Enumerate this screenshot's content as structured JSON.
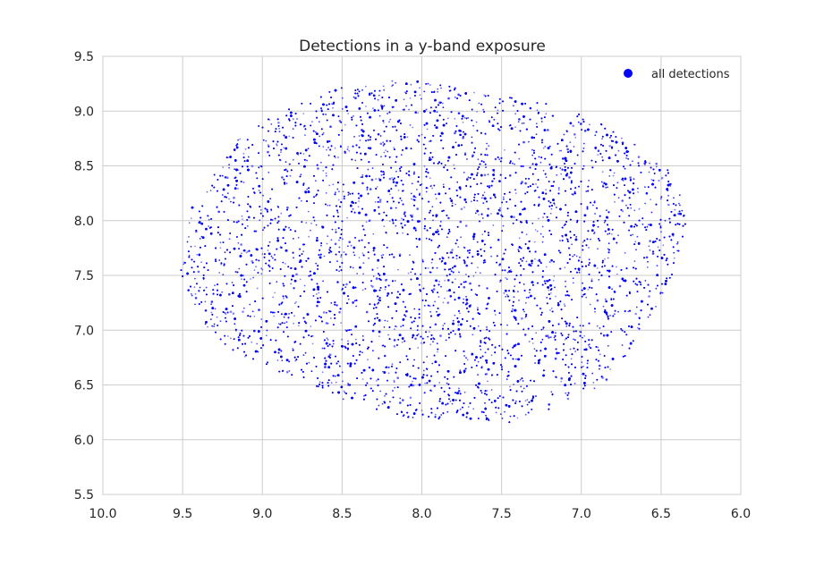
{
  "chart_data": {
    "type": "scatter",
    "title": "Detections in a y-band exposure",
    "xlabel": "",
    "ylabel": "",
    "xlim": [
      10.0,
      6.0
    ],
    "ylim": [
      5.5,
      9.5
    ],
    "x_axis_inverted": true,
    "grid": true,
    "legend_position": "top-right",
    "x_ticks": [
      "10.0",
      "9.5",
      "9.0",
      "8.5",
      "8.0",
      "7.5",
      "7.0",
      "6.5",
      "6.0"
    ],
    "y_ticks": [
      "5.5",
      "6.0",
      "6.5",
      "7.0",
      "7.5",
      "8.0",
      "8.5",
      "9.0",
      "9.5"
    ],
    "series": [
      {
        "name": "all detections",
        "color": "#0000ff",
        "marker": "dot",
        "footprint_vertices": [
          [
            8.55,
            9.2
          ],
          [
            8.15,
            9.3
          ],
          [
            7.3,
            9.1
          ],
          [
            6.95,
            8.95
          ],
          [
            6.6,
            8.65
          ],
          [
            6.4,
            8.4
          ],
          [
            6.33,
            8.0
          ],
          [
            6.45,
            7.4
          ],
          [
            6.65,
            6.9
          ],
          [
            6.85,
            6.5
          ],
          [
            7.15,
            6.3
          ],
          [
            7.45,
            6.15
          ],
          [
            8.1,
            6.2
          ],
          [
            8.8,
            6.5
          ],
          [
            9.3,
            6.9
          ],
          [
            9.53,
            7.5
          ],
          [
            9.45,
            8.1
          ],
          [
            9.15,
            8.75
          ],
          [
            8.9,
            9.0
          ]
        ],
        "chip_rotation_deg": 20,
        "chip_columns": 7,
        "chip_rows": 4,
        "approx_count": 14000
      }
    ]
  }
}
